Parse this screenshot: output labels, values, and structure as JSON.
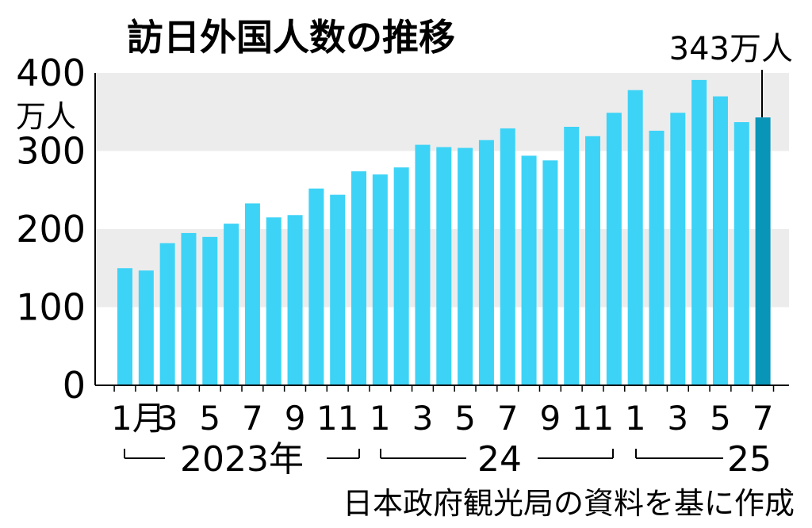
{
  "chart_data": {
    "type": "bar",
    "title": "訪日外国人数の推移",
    "y_unit": "万人",
    "ylim": [
      0,
      400
    ],
    "yticks": [
      "0",
      "100",
      "200",
      "300",
      "400"
    ],
    "grid_bands": true,
    "bar_color": "#3dd3f6",
    "highlight_color": "#0895b8",
    "highlight_index": 30,
    "annotation": "343万人",
    "values": [
      150,
      147,
      182,
      195,
      190,
      207,
      233,
      215,
      218,
      252,
      244,
      274,
      270,
      279,
      308,
      305,
      304,
      314,
      329,
      294,
      288,
      331,
      319,
      349,
      378,
      326,
      349,
      391,
      370,
      337,
      343
    ],
    "xtick_labels": [
      "1月",
      "3",
      "5",
      "7",
      "9",
      "11",
      "1",
      "3",
      "5",
      "7",
      "9",
      "11",
      "1",
      "3",
      "5",
      "7"
    ],
    "year_labels": [
      "2023年",
      "24",
      "25"
    ],
    "source": "日本政府観光局の資料を基に作成"
  }
}
